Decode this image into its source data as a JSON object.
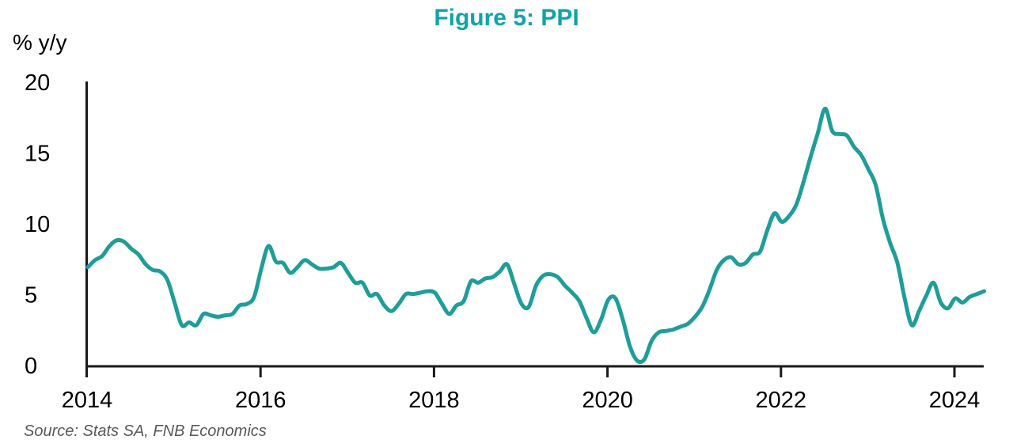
{
  "title": "Figure 5: PPI",
  "source": "Source: Stats SA, FNB Economics",
  "colors": {
    "title_accent": "#10A4A6",
    "line": "#1F9D99",
    "axis": "#1A1A1A",
    "source_text": "#595959"
  },
  "chart_data": {
    "type": "line",
    "title": "Figure 5: PPI",
    "ylabel": "% y/y",
    "xlabel": "",
    "ylim": [
      0,
      20
    ],
    "yticks": [
      0,
      5,
      10,
      15,
      20
    ],
    "xtick_years": [
      2014,
      2016,
      2018,
      2020,
      2022,
      2024
    ],
    "x_start": "2014-01",
    "x_end": "2024-05",
    "frequency": "monthly",
    "grid": false,
    "legend_position": "none",
    "series": [
      {
        "name": "PPI % y/y",
        "values": [
          7.0,
          7.5,
          7.8,
          8.5,
          8.9,
          8.8,
          8.3,
          7.9,
          7.2,
          6.8,
          6.7,
          6.1,
          4.5,
          2.9,
          3.1,
          2.9,
          3.7,
          3.6,
          3.5,
          3.6,
          3.7,
          4.3,
          4.4,
          4.9,
          6.9,
          8.5,
          7.4,
          7.3,
          6.6,
          7.0,
          7.5,
          7.2,
          6.9,
          6.9,
          7.0,
          7.3,
          6.6,
          5.9,
          5.9,
          5.0,
          5.1,
          4.3,
          3.9,
          4.4,
          5.1,
          5.1,
          5.2,
          5.3,
          5.2,
          4.4,
          3.7,
          4.3,
          4.6,
          6.0,
          5.9,
          6.2,
          6.3,
          6.7,
          7.2,
          5.8,
          4.4,
          4.2,
          5.7,
          6.4,
          6.5,
          6.3,
          5.7,
          5.2,
          4.6,
          3.4,
          2.4,
          3.3,
          4.7,
          4.8,
          3.3,
          1.4,
          0.4,
          0.5,
          1.8,
          2.4,
          2.5,
          2.6,
          2.8,
          3.0,
          3.5,
          4.2,
          5.4,
          6.8,
          7.5,
          7.7,
          7.2,
          7.3,
          7.9,
          8.1,
          9.6,
          10.8,
          10.2,
          10.6,
          11.4,
          13.0,
          14.8,
          16.5,
          18.2,
          16.6,
          16.4,
          16.3,
          15.5,
          14.9,
          13.9,
          12.8,
          10.4,
          8.7,
          7.3,
          4.8,
          2.9,
          3.9,
          5.0,
          5.9,
          4.5,
          4.1,
          4.8,
          4.5,
          4.9,
          5.1,
          5.3
        ]
      }
    ]
  }
}
